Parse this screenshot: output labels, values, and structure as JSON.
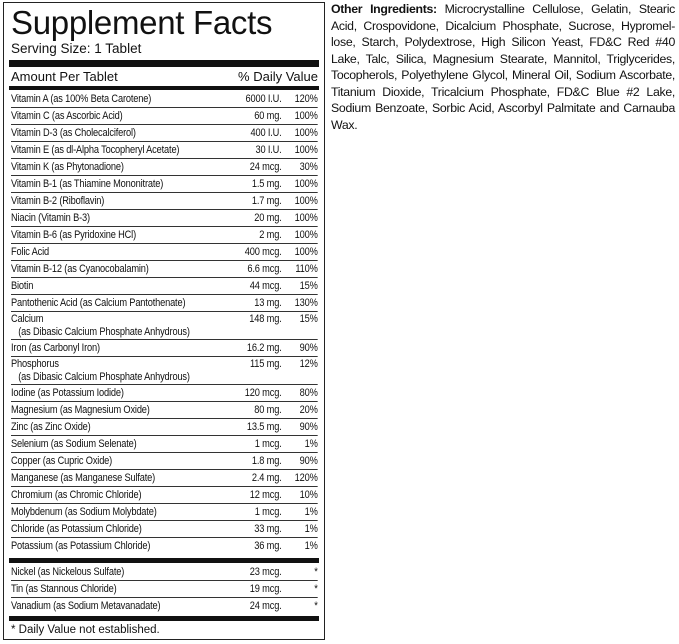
{
  "title": "Supplement Facts",
  "serving_size": "Serving Size: 1 Tablet",
  "header": {
    "amount": "Amount Per Tablet",
    "dv": "% Daily Value"
  },
  "nutrients": [
    {
      "name": "Vitamin A (as 100% Beta Carotene)",
      "amount": "6000 I.U.",
      "dv": "120%"
    },
    {
      "name": "Vitamin C (as Ascorbic Acid)",
      "amount": "60 mg.",
      "dv": "100%"
    },
    {
      "name": "Vitamin D-3 (as Cholecalciferol)",
      "amount": "400 I.U.",
      "dv": "100%"
    },
    {
      "name": "Vitamin E (as dl-Alpha Tocopheryl Acetate)",
      "amount": "30 I.U.",
      "dv": "100%"
    },
    {
      "name": "Vitamin K (as Phytonadione)",
      "amount": "24 mcg.",
      "dv": "30%"
    },
    {
      "name": "Vitamin B-1 (as Thiamine Mononitrate)",
      "amount": "1.5 mg.",
      "dv": "100%"
    },
    {
      "name": "Vitamin B-2 (Riboflavin)",
      "amount": "1.7 mg.",
      "dv": "100%"
    },
    {
      "name": "Niacin (Vitamin B-3)",
      "amount": "20 mg.",
      "dv": "100%"
    },
    {
      "name": "Vitamin B-6 (as Pyridoxine HCl)",
      "amount": "2 mg.",
      "dv": "100%"
    },
    {
      "name": "Folic Acid",
      "amount": "400 mcg.",
      "dv": "100%"
    },
    {
      "name": "Vitamin B-12 (as Cyanocobalamin)",
      "amount": "6.6 mcg.",
      "dv": "110%"
    },
    {
      "name": "Biotin",
      "amount": "44 mcg.",
      "dv": "15%"
    },
    {
      "name": "Pantothenic Acid (as Calcium Pantothenate)",
      "amount": "13 mg.",
      "dv": "130%"
    },
    {
      "name": "Calcium\n   (as Dibasic Calcium Phosphate Anhydrous)",
      "amount": "148 mg.",
      "dv": "15%"
    },
    {
      "name": "Iron (as Carbonyl Iron)",
      "amount": "16.2 mg.",
      "dv": "90%"
    },
    {
      "name": "Phosphorus\n   (as Dibasic Calcium Phosphate Anhydrous)",
      "amount": "115 mg.",
      "dv": "12%"
    },
    {
      "name": "Iodine (as Potassium Iodide)",
      "amount": "120 mcg.",
      "dv": "80%"
    },
    {
      "name": "Magnesium (as Magnesium Oxide)",
      "amount": "80 mg.",
      "dv": "20%"
    },
    {
      "name": "Zinc (as Zinc Oxide)",
      "amount": "13.5 mg.",
      "dv": "90%"
    },
    {
      "name": "Selenium (as Sodium Selenate)",
      "amount": "1 mcg.",
      "dv": "1%"
    },
    {
      "name": "Copper (as Cupric Oxide)",
      "amount": "1.8 mg.",
      "dv": "90%"
    },
    {
      "name": "Manganese (as Manganese Sulfate)",
      "amount": "2.4 mg.",
      "dv": "120%"
    },
    {
      "name": "Chromium (as Chromic Chloride)",
      "amount": "12 mcg.",
      "dv": "10%"
    },
    {
      "name": "Molybdenum (as Sodium Molybdate)",
      "amount": "1 mcg.",
      "dv": "1%"
    },
    {
      "name": "Chloride (as Potassium Chloride)",
      "amount": "33 mg.",
      "dv": "1%"
    },
    {
      "name": "Potassium (as Potassium Chloride)",
      "amount": "36 mg.",
      "dv": "1%"
    }
  ],
  "no_dv": [
    {
      "name": "Nickel (as Nickelous Sulfate)",
      "amount": "23 mcg.",
      "dv": "*"
    },
    {
      "name": "Tin (as Stannous Chloride)",
      "amount": "19 mcg.",
      "dv": "*"
    },
    {
      "name": "Vanadium (as Sodium Metavanadate)",
      "amount": "24 mcg.",
      "dv": "*"
    }
  ],
  "footnote": "* Daily Value not established.",
  "other_ingredients": {
    "label": "Other Ingredients:",
    "text": " Microcrystalline Cellulose, Gelatin, Stearic Acid, Crospovidone, Dicalcium Phosphate, Sucrose, Hypromel-lose, Starch, Polydextrose, High Silicon Yeast, FD&C Red #40 Lake, Talc, Silica, Magnesium Stearate, Mannitol, Triglycerides, Tocopherols, Polyethylene Glycol, Mineral Oil, Sodium Ascorbate, Titanium Dioxide, Tricalcium Phosphate, FD&C Blue #2 Lake, Sodium Benzoate, Sorbic Acid, Ascorbyl Palmitate and Carnauba Wax."
  }
}
